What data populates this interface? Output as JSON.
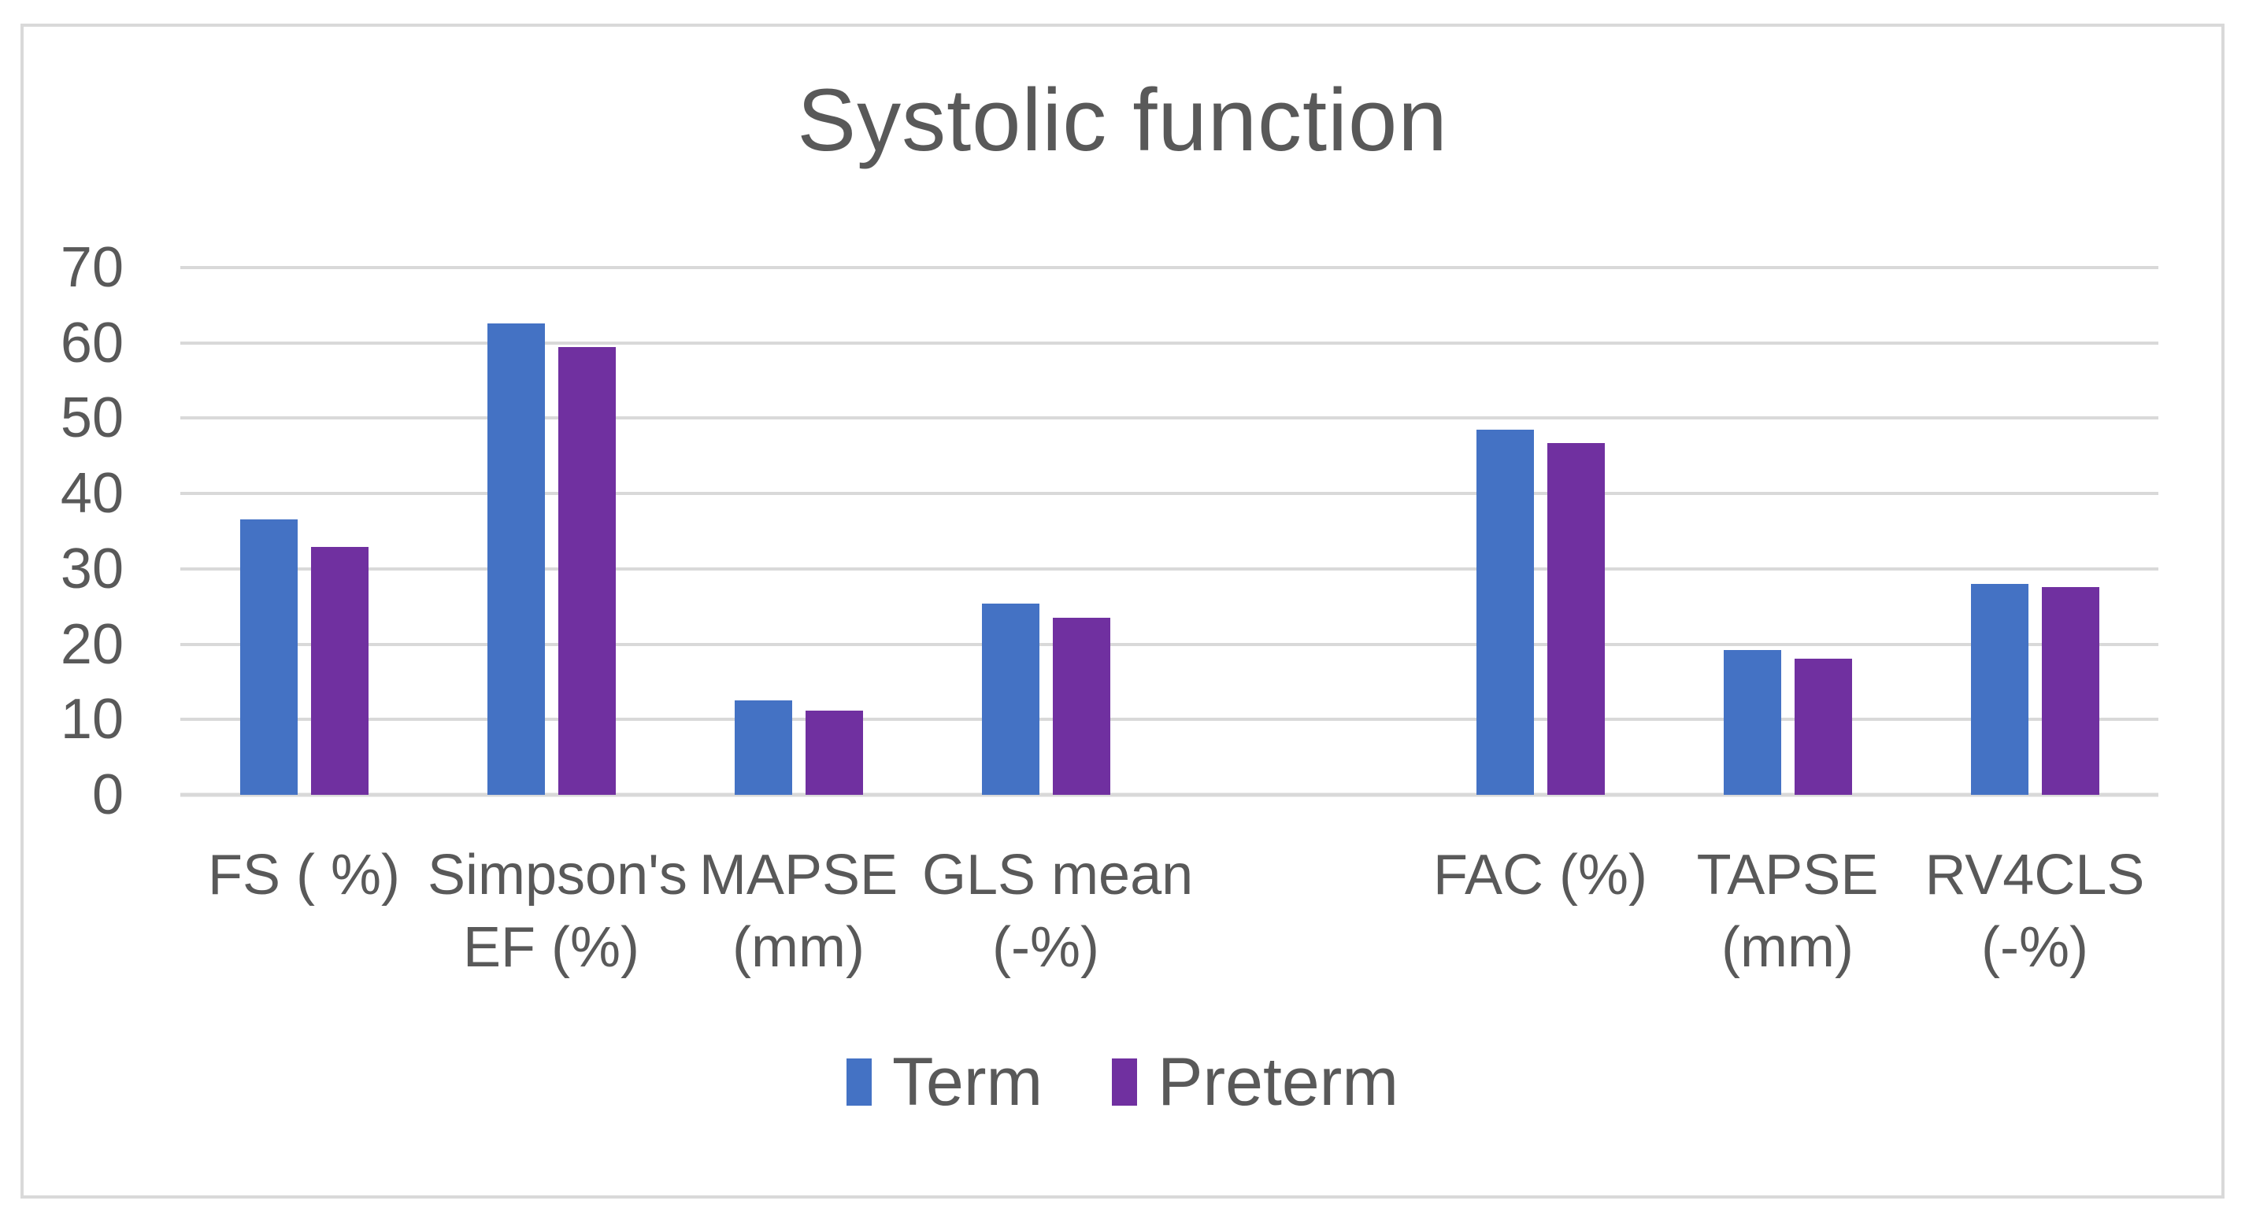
{
  "colors": {
    "term": "#4472C4",
    "preterm": "#7030A0",
    "gridline": "#D9D9D9",
    "text": "#595959",
    "frame_border": "#D9D9D9",
    "background": "#FFFFFF"
  },
  "y_axis": {
    "tick_labels": [
      "0",
      "10",
      "20",
      "30",
      "40",
      "50",
      "60",
      "70"
    ]
  },
  "legend": {
    "items": [
      {
        "label": "Term",
        "series_key": "term"
      },
      {
        "label": "Preterm",
        "series_key": "preterm"
      }
    ]
  },
  "chart_data": {
    "type": "bar",
    "title": "Systolic function",
    "categories": [
      "FS ( %)",
      "Simpson's EF (%)",
      "MAPSE (mm)",
      "GLS mean (-%)",
      "FAC (%)",
      "TAPSE (mm)",
      "RV4CLS (-%)"
    ],
    "category_label_lines": [
      [
        "FS ( %)"
      ],
      [
        "Simpson's",
        "EF (%)"
      ],
      [
        "MAPSE",
        "(mm)"
      ],
      [
        "GLS mean",
        "(-%)"
      ],
      [
        "FAC (%)"
      ],
      [
        "TAPSE",
        "(mm)"
      ],
      [
        "RV4CLS",
        "(-%)"
      ]
    ],
    "category_slots": [
      0,
      1,
      2,
      3,
      5,
      6,
      7
    ],
    "total_slots": 8,
    "series": [
      {
        "name": "Term",
        "color": "#4472C4",
        "values": [
          36.6,
          62.6,
          12.5,
          25.4,
          48.5,
          19.2,
          28.0
        ]
      },
      {
        "name": "Preterm",
        "color": "#7030A0",
        "values": [
          32.9,
          59.5,
          11.2,
          23.5,
          46.7,
          18.1,
          27.6
        ]
      }
    ],
    "xlabel": "",
    "ylabel": "",
    "ylim": [
      0,
      70
    ],
    "y_tick_step": 10,
    "grid": true,
    "legend_position": "bottom-center"
  }
}
